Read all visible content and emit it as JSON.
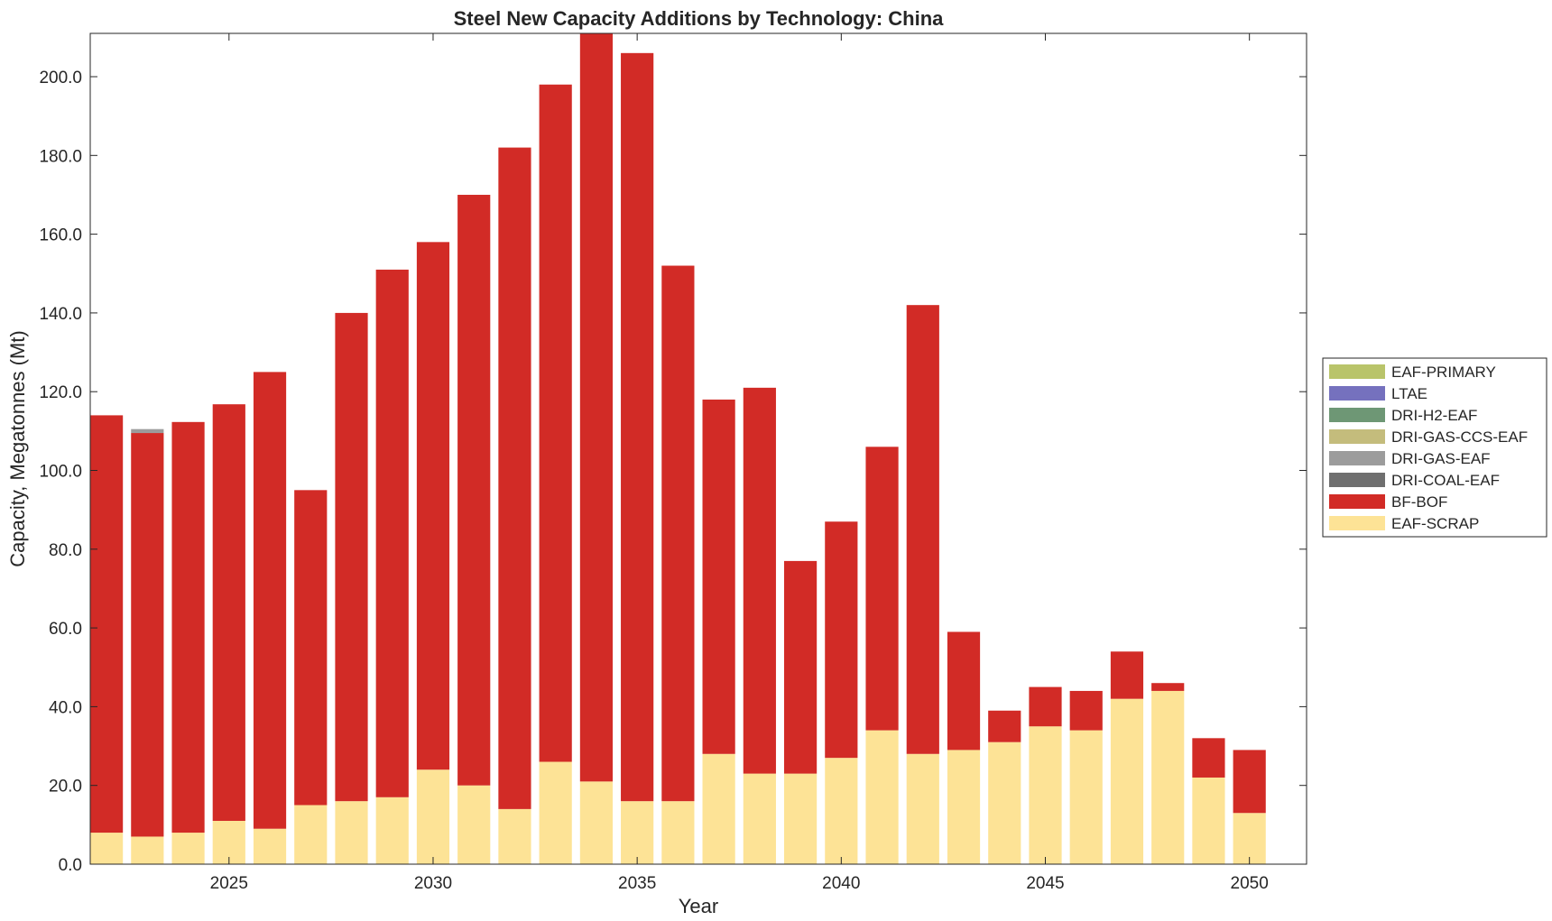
{
  "chart_data": {
    "type": "bar",
    "stacked": true,
    "title": "Steel New Capacity Additions by Technology: China",
    "xlabel": "Year",
    "ylabel": "Capacity, Megatonnes (Mt)",
    "xlim": [
      2021.6,
      2051.4
    ],
    "ylim": [
      0,
      211
    ],
    "x_ticks": [
      2025,
      2030,
      2035,
      2040,
      2045,
      2050
    ],
    "y_ticks": [
      0,
      20,
      40,
      60,
      80,
      100,
      120,
      140,
      160,
      180,
      200
    ],
    "y_tick_labels": [
      "0.0",
      "20.0",
      "40.0",
      "60.0",
      "80.0",
      "100.0",
      "120.0",
      "140.0",
      "160.0",
      "180.0",
      "200.0"
    ],
    "x": [
      2022,
      2023,
      2024,
      2025,
      2026,
      2027,
      2028,
      2029,
      2030,
      2031,
      2032,
      2033,
      2034,
      2035,
      2036,
      2037,
      2038,
      2039,
      2040,
      2041,
      2042,
      2043,
      2044,
      2045,
      2046,
      2047,
      2048,
      2049,
      2050
    ],
    "series": [
      {
        "name": "EAF-SCRAP",
        "color": "#fde396",
        "values": [
          8,
          7,
          8,
          11,
          9,
          15,
          16,
          17,
          24,
          20,
          14,
          26,
          21,
          16,
          16,
          28,
          23,
          23,
          27,
          34,
          28,
          29,
          31,
          35,
          34,
          42,
          44,
          22,
          13
        ]
      },
      {
        "name": "BF-BOF",
        "color": "#d22b26",
        "values": [
          106,
          102.5,
          104.3,
          105.8,
          116,
          80,
          124,
          134,
          134,
          150,
          168,
          172,
          190,
          190,
          136,
          90,
          98,
          54,
          60,
          72,
          114,
          30,
          8,
          10,
          10,
          12,
          2,
          10,
          16
        ]
      },
      {
        "name": "DRI-COAL-EAF",
        "color": "#6f6f6f",
        "values": [
          0,
          0,
          0,
          0,
          0,
          0,
          0,
          0,
          0,
          0,
          0,
          0,
          0,
          0,
          0,
          0,
          0,
          0,
          0,
          0,
          0,
          0,
          0,
          0,
          0,
          0,
          0,
          0,
          0
        ]
      },
      {
        "name": "DRI-GAS-EAF",
        "color": "#9c9c9c",
        "values": [
          0,
          1,
          0,
          0,
          0,
          0,
          0,
          0,
          0,
          0,
          0,
          0,
          0,
          0,
          0,
          0,
          0,
          0,
          0,
          0,
          0,
          0,
          0,
          0,
          0,
          0,
          0,
          0,
          0
        ]
      },
      {
        "name": "DRI-GAS-CCS-EAF",
        "color": "#c4bc7c",
        "values": [
          0,
          0,
          0,
          0,
          0,
          0,
          0,
          0,
          0,
          0,
          0,
          0,
          0,
          0,
          0,
          0,
          0,
          0,
          0,
          0,
          0,
          0,
          0,
          0,
          0,
          0,
          0,
          0,
          0
        ]
      },
      {
        "name": "DRI-H2-EAF",
        "color": "#6e9775",
        "values": [
          0,
          0,
          0,
          0,
          0,
          0,
          0,
          0,
          0,
          0,
          0,
          0,
          0,
          0,
          0,
          0,
          0,
          0,
          0,
          0,
          0,
          0,
          0,
          0,
          0,
          0,
          0,
          0,
          0
        ]
      },
      {
        "name": "LTAE",
        "color": "#7571be",
        "values": [
          0,
          0,
          0,
          0,
          0,
          0,
          0,
          0,
          0,
          0,
          0,
          0,
          0,
          0,
          0,
          0,
          0,
          0,
          0,
          0,
          0,
          0,
          0,
          0,
          0,
          0,
          0,
          0,
          0
        ]
      },
      {
        "name": "EAF-PRIMARY",
        "color": "#b9c46a",
        "values": [
          0,
          0,
          0,
          0,
          0,
          0,
          0,
          0,
          0,
          0,
          0,
          0,
          0,
          0,
          0,
          0,
          0,
          0,
          0,
          0,
          0,
          0,
          0,
          0,
          0,
          0,
          0,
          0,
          0
        ]
      }
    ],
    "legend": {
      "placement": "right",
      "entries": [
        {
          "label": "EAF-PRIMARY",
          "color": "#b9c46a"
        },
        {
          "label": "LTAE",
          "color": "#7571be"
        },
        {
          "label": "DRI-H2-EAF",
          "color": "#6e9775"
        },
        {
          "label": "DRI-GAS-CCS-EAF",
          "color": "#c4bc7c"
        },
        {
          "label": "DRI-GAS-EAF",
          "color": "#9c9c9c"
        },
        {
          "label": "DRI-COAL-EAF",
          "color": "#6f6f6f"
        },
        {
          "label": "BF-BOF",
          "color": "#d22b26"
        },
        {
          "label": "EAF-SCRAP",
          "color": "#fde396"
        }
      ]
    },
    "grid": false
  }
}
